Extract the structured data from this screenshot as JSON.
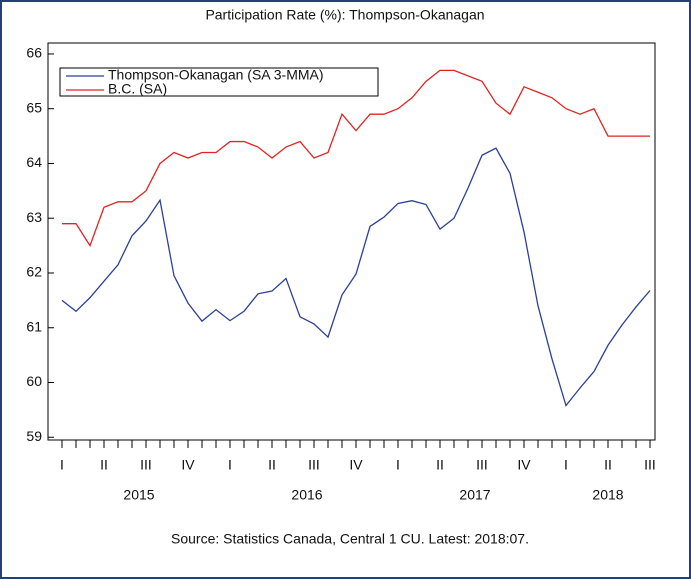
{
  "chart_data": {
    "type": "line",
    "title": "Participation Rate (%): Thompson-Okanagan",
    "source": "Source: Statistics Canada, Central 1 CU. Latest: 2018:07.",
    "categories": [
      "I",
      null,
      null,
      "II",
      null,
      null,
      "III",
      null,
      null,
      "IV",
      null,
      null,
      "I",
      null,
      null,
      "II",
      null,
      null,
      "III",
      null,
      null,
      "IV",
      null,
      null,
      "I",
      null,
      null,
      "II",
      null,
      null,
      "III",
      null,
      null,
      "IV",
      null,
      null,
      "I",
      null,
      null,
      "II",
      null,
      null,
      "III"
    ],
    "year_labels": [
      "2015",
      "2016",
      "2017",
      "2018"
    ],
    "series": [
      {
        "name": "Thompson-Okanagan (SA 3-MMA)",
        "color": "#2b3f97",
        "values": [
          61.5,
          61.3,
          61.55,
          61.85,
          62.15,
          62.68,
          62.95,
          63.33,
          61.95,
          61.45,
          61.12,
          61.33,
          61.13,
          61.3,
          61.62,
          61.67,
          61.9,
          61.2,
          61.07,
          60.83,
          61.6,
          61.98,
          62.85,
          63.02,
          63.27,
          63.32,
          63.25,
          62.8,
          63.0,
          63.55,
          64.15,
          64.28,
          63.82,
          62.75,
          61.4,
          60.43,
          59.58,
          59.9,
          60.2,
          60.68,
          61.05,
          61.38,
          61.68
        ]
      },
      {
        "name": "B.C. (SA)",
        "color": "#e02424",
        "values": [
          62.9,
          62.9,
          62.5,
          63.2,
          63.3,
          63.3,
          63.5,
          64.0,
          64.2,
          64.1,
          64.2,
          64.2,
          64.4,
          64.4,
          64.3,
          64.1,
          64.3,
          64.4,
          64.1,
          64.2,
          64.9,
          64.6,
          64.9,
          64.9,
          65.0,
          65.2,
          65.5,
          65.7,
          65.7,
          65.6,
          65.5,
          65.1,
          64.9,
          65.4,
          65.3,
          65.2,
          65.0,
          64.9,
          65.0,
          64.5,
          64.5,
          64.5,
          64.5
        ]
      }
    ],
    "ylim": [
      58.95,
      66.2
    ],
    "yticks": [
      59,
      60,
      61,
      62,
      63,
      64,
      65,
      66
    ],
    "grid": false,
    "legend": "top-left"
  }
}
